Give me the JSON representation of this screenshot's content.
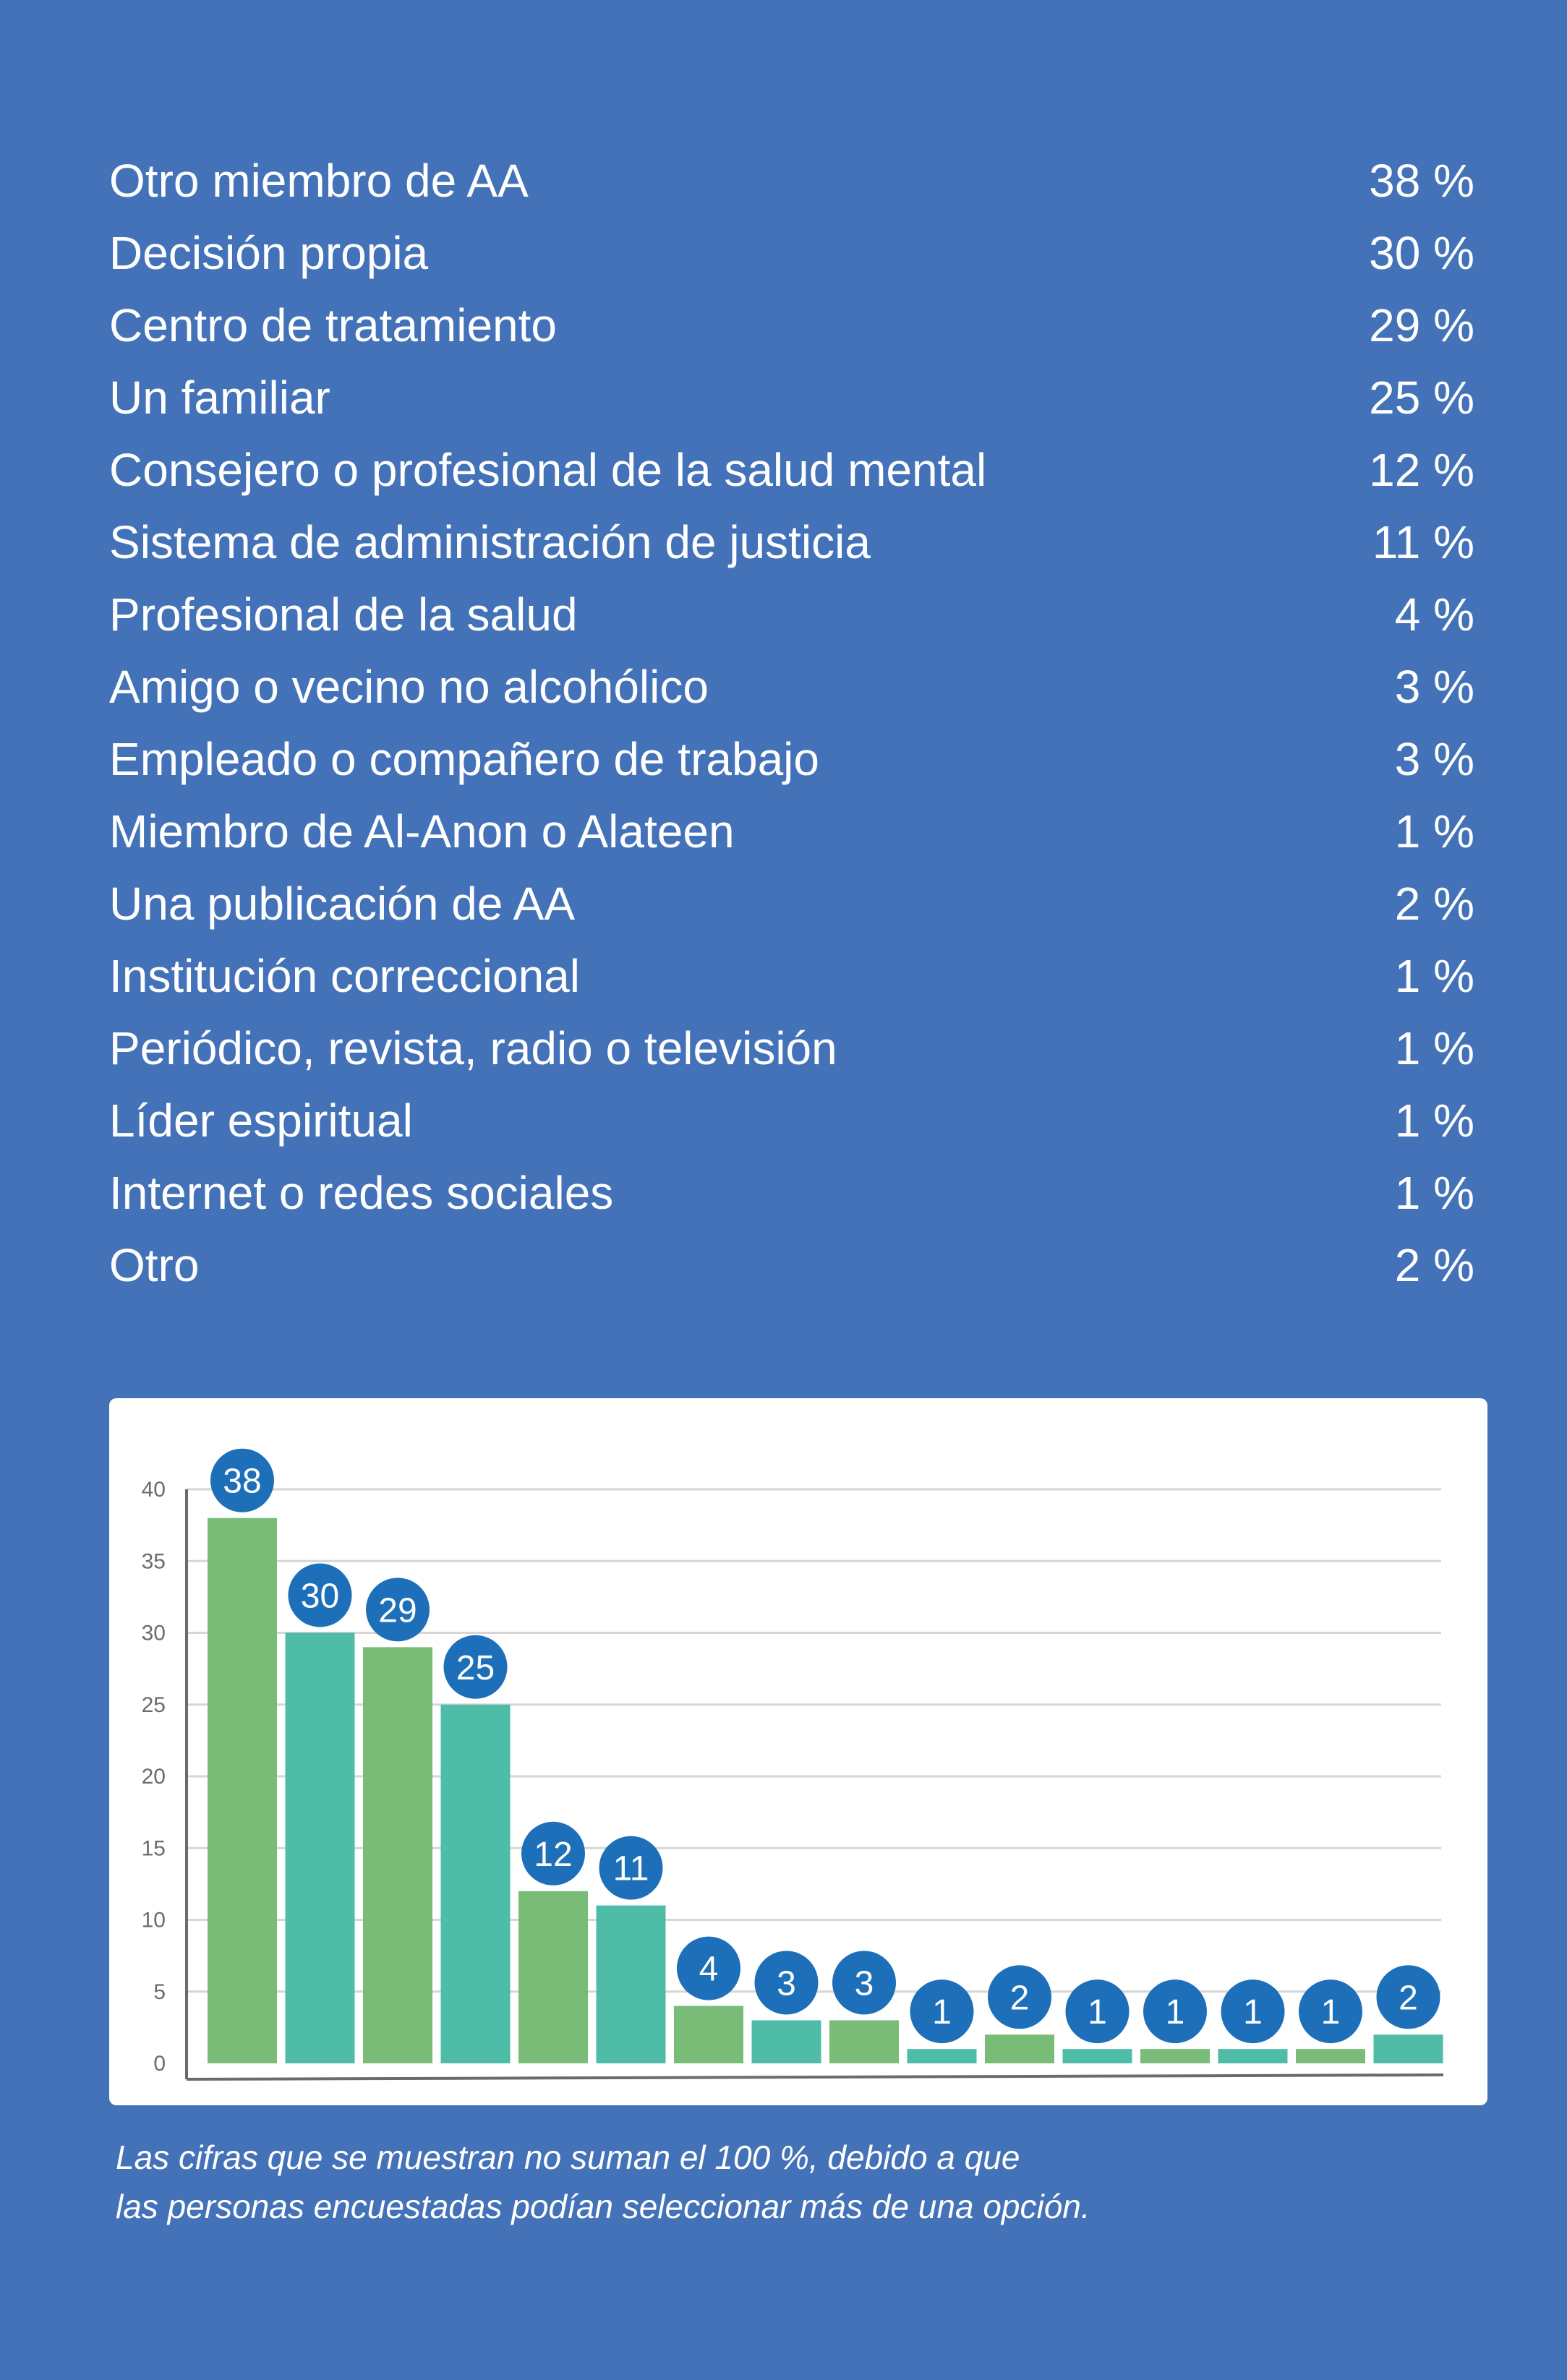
{
  "chart_data": {
    "type": "bar",
    "categories": [
      "Otro miembro de AA",
      "Decisión propia",
      "Centro de tratamiento",
      "Un familiar",
      "Consejero o profesional de la salud mental",
      "Sistema de administración de justicia",
      "Profesional de la salud",
      "Amigo o vecino no alcohólico",
      "Empleado o compañero de trabajo",
      "Miembro de Al-Anon o Alateen",
      "Una publicación de AA",
      "Institución correccional",
      "Periódico, revista, radio o televisión",
      "Líder espiritual",
      "Internet o redes sociales",
      "Otro"
    ],
    "values": [
      38,
      30,
      29,
      25,
      12,
      11,
      4,
      3,
      3,
      1,
      2,
      1,
      1,
      1,
      1,
      2
    ],
    "value_labels": [
      "38 %",
      "30 %",
      "29 %",
      "25 %",
      "12 %",
      "11 %",
      "4 %",
      "3 %",
      "3 %",
      "1 %",
      "2 %",
      "1 %",
      "1 %",
      "1 %",
      "1 %",
      "2 %"
    ],
    "bar_labels": [
      "38",
      "30",
      "29",
      "25",
      "12",
      "11",
      "4",
      "3",
      "3",
      "1",
      "2",
      "1",
      "1",
      "1",
      "1",
      "2"
    ],
    "yticks": [
      "0",
      "5",
      "10",
      "15",
      "20",
      "25",
      "30",
      "35",
      "40"
    ],
    "ylim": [
      0,
      40
    ],
    "grid": true,
    "title": "",
    "xlabel": "",
    "ylabel": "",
    "colors": {
      "background": "#4472b9",
      "bar_green": "#78bc78",
      "bar_teal": "#4ebca6",
      "bubble": "#1c6fb8",
      "grid": "#d6d6d6",
      "axis": "#6b6b6b"
    }
  },
  "footnote": {
    "line1": "Las cifras que se muestran no suman el 100 %, debido a que",
    "line2": "las personas encuestadas podían seleccionar más de una opción."
  }
}
